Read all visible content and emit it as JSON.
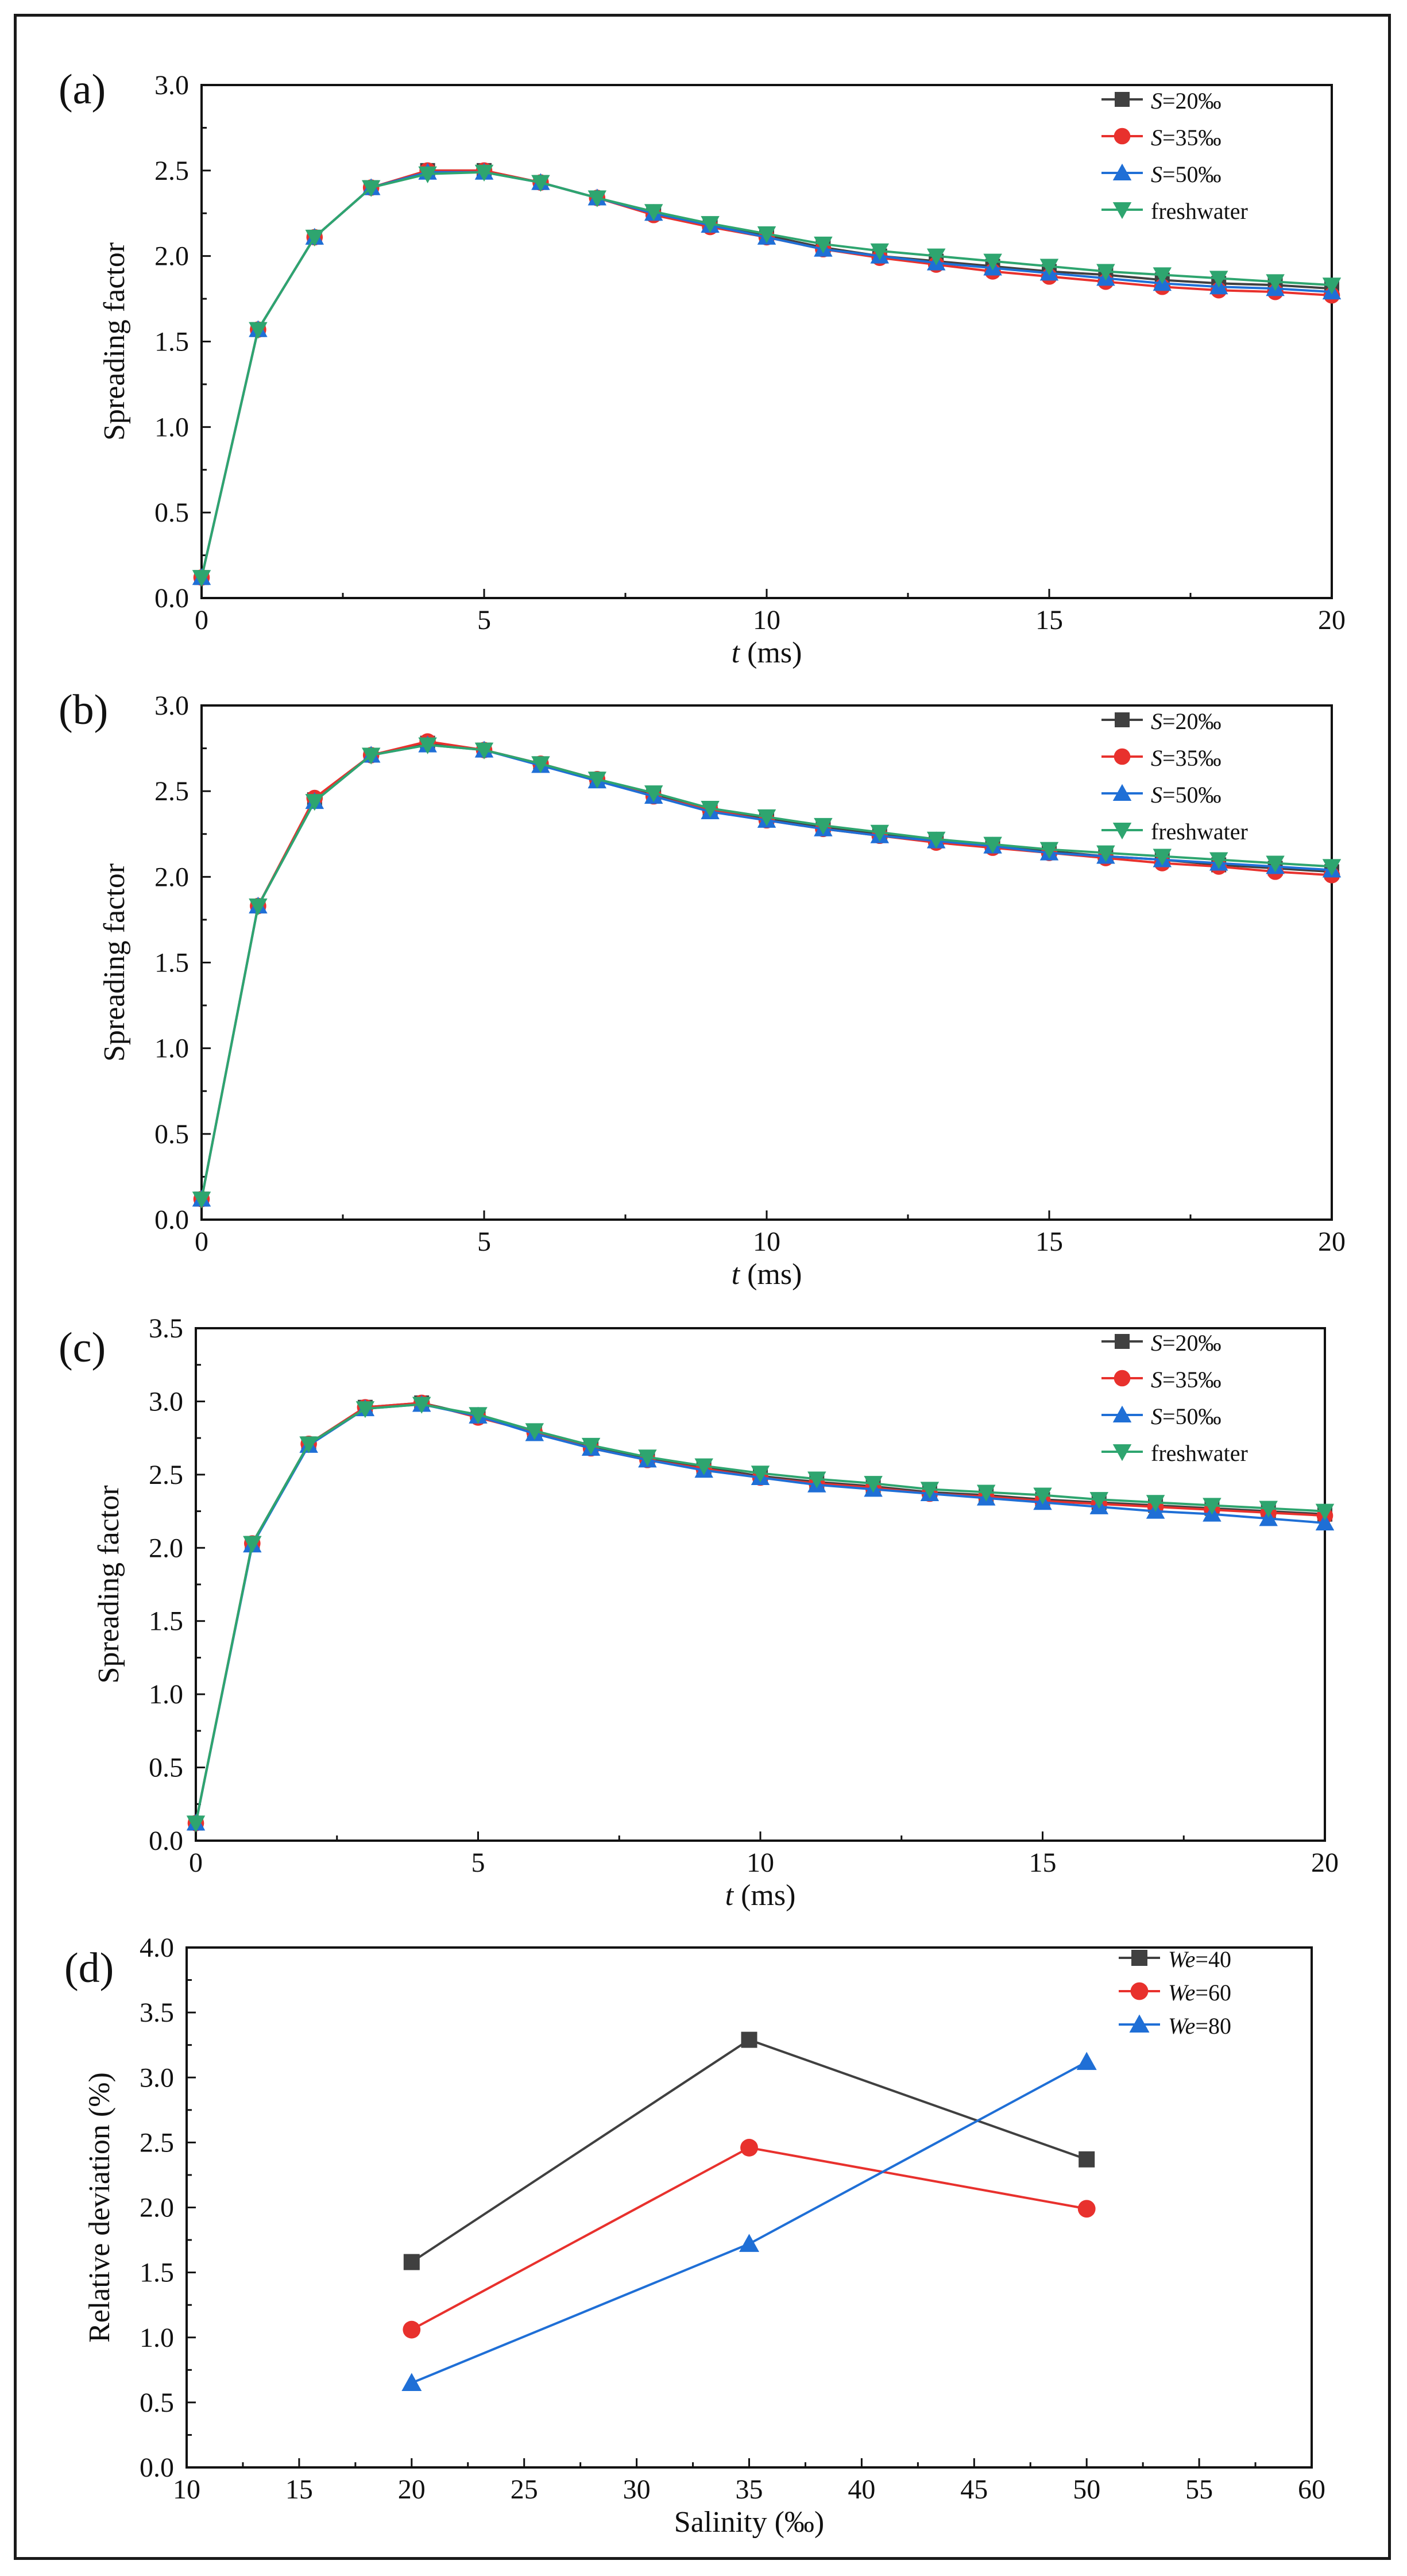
{
  "figure": {
    "panels": [
      "a",
      "b",
      "c",
      "d"
    ]
  },
  "chart_data": [
    {
      "type": "line",
      "panel_label": "(a)",
      "title": "",
      "xlabel_italic": "t",
      "xlabel_rest": " (ms)",
      "ylabel": "Spreading factor",
      "xlim": [
        0,
        20
      ],
      "ylim": [
        0,
        3.0
      ],
      "xticks": [
        0,
        5,
        10,
        15,
        20
      ],
      "yticks": [
        0.0,
        0.5,
        1.0,
        1.5,
        2.0,
        2.5,
        3.0
      ],
      "x": [
        0,
        1,
        2,
        3,
        4,
        5,
        6,
        7,
        8,
        9,
        10,
        11,
        12,
        13,
        14,
        15,
        16,
        17,
        18,
        19,
        20
      ],
      "series": [
        {
          "name": "S=20‰",
          "name_italic": "S",
          "name_rest": "=20‰",
          "marker": "square",
          "color": "#404040",
          "values": [
            0.12,
            1.57,
            2.11,
            2.4,
            2.5,
            2.5,
            2.43,
            2.34,
            2.25,
            2.18,
            2.12,
            2.05,
            2.0,
            1.97,
            1.94,
            1.91,
            1.89,
            1.86,
            1.84,
            1.83,
            1.81
          ]
        },
        {
          "name": "S=35‰",
          "name_italic": "S",
          "name_rest": "=35‰",
          "marker": "circle",
          "color": "#e8312d",
          "values": [
            0.12,
            1.57,
            2.11,
            2.4,
            2.5,
            2.5,
            2.43,
            2.34,
            2.24,
            2.17,
            2.11,
            2.04,
            1.99,
            1.95,
            1.91,
            1.88,
            1.85,
            1.82,
            1.8,
            1.79,
            1.77
          ]
        },
        {
          "name": "S=50‰",
          "name_italic": "S",
          "name_rest": "=50‰",
          "marker": "triangle-up",
          "color": "#1f6fd6",
          "values": [
            0.12,
            1.57,
            2.11,
            2.4,
            2.49,
            2.49,
            2.43,
            2.34,
            2.25,
            2.18,
            2.11,
            2.04,
            2.0,
            1.96,
            1.93,
            1.9,
            1.87,
            1.84,
            1.82,
            1.81,
            1.79
          ]
        },
        {
          "name": "freshwater",
          "name_italic": "",
          "name_rest": "freshwater",
          "marker": "triangle-down",
          "color": "#2ea56f",
          "values": [
            0.12,
            1.57,
            2.11,
            2.4,
            2.48,
            2.49,
            2.43,
            2.34,
            2.26,
            2.19,
            2.13,
            2.07,
            2.03,
            2.0,
            1.97,
            1.94,
            1.91,
            1.89,
            1.87,
            1.85,
            1.83
          ]
        }
      ]
    },
    {
      "type": "line",
      "panel_label": "(b)",
      "title": "",
      "xlabel_italic": "t",
      "xlabel_rest": " (ms)",
      "ylabel": "Spreading factor",
      "xlim": [
        0,
        20
      ],
      "ylim": [
        0,
        3.0
      ],
      "xticks": [
        0,
        5,
        10,
        15,
        20
      ],
      "yticks": [
        0.0,
        0.5,
        1.0,
        1.5,
        2.0,
        2.5,
        3.0
      ],
      "x": [
        0,
        1,
        2,
        3,
        4,
        5,
        6,
        7,
        8,
        9,
        10,
        11,
        12,
        13,
        14,
        15,
        16,
        17,
        18,
        19,
        20
      ],
      "series": [
        {
          "name": "S=20‰",
          "name_italic": "S",
          "name_rest": "=20‰",
          "marker": "square",
          "color": "#404040",
          "values": [
            0.12,
            1.83,
            2.45,
            2.71,
            2.78,
            2.74,
            2.66,
            2.57,
            2.48,
            2.4,
            2.34,
            2.29,
            2.25,
            2.21,
            2.18,
            2.15,
            2.12,
            2.1,
            2.07,
            2.05,
            2.03
          ]
        },
        {
          "name": "S=35‰",
          "name_italic": "S",
          "name_rest": "=35‰",
          "marker": "circle",
          "color": "#e8312d",
          "values": [
            0.12,
            1.83,
            2.46,
            2.71,
            2.79,
            2.74,
            2.66,
            2.57,
            2.47,
            2.39,
            2.33,
            2.28,
            2.24,
            2.2,
            2.17,
            2.14,
            2.11,
            2.08,
            2.06,
            2.03,
            2.01
          ]
        },
        {
          "name": "S=50‰",
          "name_italic": "S",
          "name_rest": "=50‰",
          "marker": "triangle-up",
          "color": "#1f6fd6",
          "values": [
            0.12,
            1.83,
            2.44,
            2.71,
            2.77,
            2.74,
            2.65,
            2.56,
            2.47,
            2.38,
            2.33,
            2.28,
            2.24,
            2.21,
            2.18,
            2.14,
            2.12,
            2.1,
            2.08,
            2.06,
            2.04
          ]
        },
        {
          "name": "freshwater",
          "name_italic": "",
          "name_rest": "freshwater",
          "marker": "triangle-down",
          "color": "#2ea56f",
          "values": [
            0.12,
            1.83,
            2.44,
            2.71,
            2.77,
            2.74,
            2.66,
            2.57,
            2.49,
            2.4,
            2.35,
            2.3,
            2.26,
            2.22,
            2.19,
            2.16,
            2.14,
            2.12,
            2.1,
            2.08,
            2.06
          ]
        }
      ]
    },
    {
      "type": "line",
      "panel_label": "(c)",
      "title": "",
      "xlabel_italic": "t",
      "xlabel_rest": " (ms)",
      "ylabel": "Spreading factor",
      "xlim": [
        0,
        20
      ],
      "ylim": [
        0,
        3.5
      ],
      "xticks": [
        0,
        5,
        10,
        15,
        20
      ],
      "yticks": [
        0.0,
        0.5,
        1.0,
        1.5,
        2.0,
        2.5,
        3.0,
        3.5
      ],
      "x": [
        0,
        1,
        2,
        3,
        4,
        5,
        6,
        7,
        8,
        9,
        10,
        11,
        12,
        13,
        14,
        15,
        16,
        17,
        18,
        19,
        20
      ],
      "series": [
        {
          "name": "S=20‰",
          "name_italic": "S",
          "name_rest": "=20‰",
          "marker": "square",
          "color": "#404040",
          "values": [
            0.12,
            2.03,
            2.71,
            2.96,
            2.99,
            2.9,
            2.79,
            2.69,
            2.61,
            2.55,
            2.49,
            2.45,
            2.42,
            2.38,
            2.36,
            2.33,
            2.31,
            2.29,
            2.27,
            2.25,
            2.23
          ]
        },
        {
          "name": "S=35‰",
          "name_italic": "S",
          "name_rest": "=35‰",
          "marker": "circle",
          "color": "#e8312d",
          "values": [
            0.12,
            2.03,
            2.71,
            2.96,
            2.99,
            2.89,
            2.79,
            2.68,
            2.6,
            2.54,
            2.48,
            2.44,
            2.41,
            2.37,
            2.35,
            2.32,
            2.3,
            2.28,
            2.26,
            2.24,
            2.22
          ]
        },
        {
          "name": "S=50‰",
          "name_italic": "S",
          "name_rest": "=50‰",
          "marker": "triangle-up",
          "color": "#1f6fd6",
          "values": [
            0.12,
            2.02,
            2.7,
            2.95,
            2.98,
            2.9,
            2.78,
            2.68,
            2.6,
            2.53,
            2.48,
            2.43,
            2.4,
            2.37,
            2.34,
            2.31,
            2.28,
            2.25,
            2.23,
            2.2,
            2.17
          ]
        },
        {
          "name": "freshwater",
          "name_italic": "",
          "name_rest": "freshwater",
          "marker": "triangle-down",
          "color": "#2ea56f",
          "values": [
            0.12,
            2.03,
            2.71,
            2.95,
            2.98,
            2.91,
            2.8,
            2.7,
            2.62,
            2.56,
            2.51,
            2.47,
            2.44,
            2.4,
            2.38,
            2.36,
            2.33,
            2.31,
            2.29,
            2.27,
            2.25
          ]
        }
      ]
    },
    {
      "type": "line",
      "panel_label": "(d)",
      "title": "",
      "xlabel_italic": "",
      "xlabel_rest": "Salinity (‰)",
      "ylabel": "Relative deviation (%)",
      "xlim": [
        10,
        60
      ],
      "ylim": [
        0,
        4.0
      ],
      "xticks": [
        10,
        15,
        20,
        25,
        30,
        35,
        40,
        45,
        50,
        55,
        60
      ],
      "yticks": [
        0.0,
        0.5,
        1.0,
        1.5,
        2.0,
        2.5,
        3.0,
        3.5,
        4.0
      ],
      "x": [
        20,
        35,
        50
      ],
      "series": [
        {
          "name": "We=40",
          "name_italic": "We",
          "name_rest": "=40",
          "marker": "square",
          "color": "#404040",
          "values": [
            1.58,
            3.29,
            2.37
          ]
        },
        {
          "name": "We=60",
          "name_italic": "We",
          "name_rest": "=60",
          "marker": "circle",
          "color": "#e8312d",
          "values": [
            1.06,
            2.46,
            1.99
          ]
        },
        {
          "name": "We=80",
          "name_italic": "We",
          "name_rest": "=80",
          "marker": "triangle-up",
          "color": "#1f6fd6",
          "values": [
            0.65,
            1.72,
            3.12
          ]
        }
      ]
    }
  ]
}
